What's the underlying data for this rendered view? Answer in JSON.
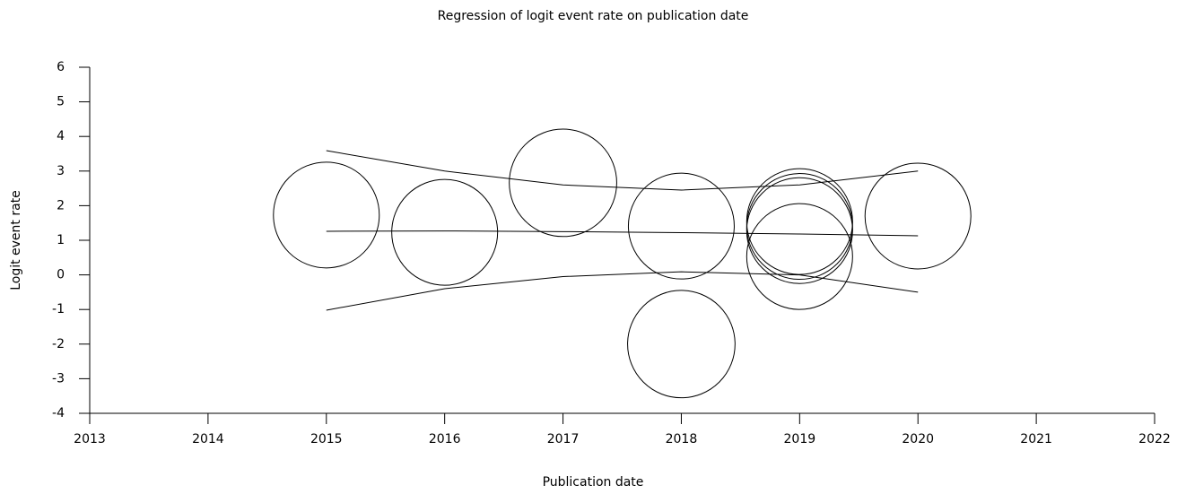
{
  "chart_data": {
    "type": "scatter",
    "title": "Regression of logit event rate on publication date",
    "xlabel": "Publication date",
    "ylabel": "Logit event rate",
    "x": [
      2015,
      2016,
      2017,
      2018,
      2018,
      2019,
      2019,
      2019,
      2019,
      2020
    ],
    "values": [
      1.73,
      1.23,
      2.66,
      1.41,
      -2.0,
      1.54,
      1.4,
      1.28,
      0.53,
      1.7
    ],
    "sizes": [
      1,
      1,
      1.03,
      1,
      1.03,
      1,
      1,
      1,
      1,
      1
    ],
    "color": "#000000",
    "lines": [
      {
        "x": [
          2015,
          2016,
          2017,
          2018,
          2019,
          2020
        ],
        "values": [
          3.59,
          3.0,
          2.6,
          2.45,
          2.6,
          3.0
        ]
      },
      {
        "x": [
          2015,
          2016,
          2017,
          2018,
          2019,
          2020
        ],
        "values": [
          1.26,
          1.27,
          1.25,
          1.22,
          1.18,
          1.13
        ]
      },
      {
        "x": [
          2015,
          2016,
          2017,
          2018,
          2019,
          2020
        ],
        "values": [
          -1.02,
          -0.4,
          -0.05,
          0.09,
          0.0,
          -0.5
        ]
      }
    ],
    "xlim": [
      2013,
      2022
    ],
    "xticks": [
      2013,
      2014,
      2015,
      2016,
      2017,
      2018,
      2019,
      2020,
      2021,
      2022
    ],
    "ylim": [
      -4,
      6
    ],
    "yticks": [
      -4,
      -3,
      -2,
      -1,
      0,
      1,
      2,
      3,
      4,
      5,
      6
    ]
  }
}
